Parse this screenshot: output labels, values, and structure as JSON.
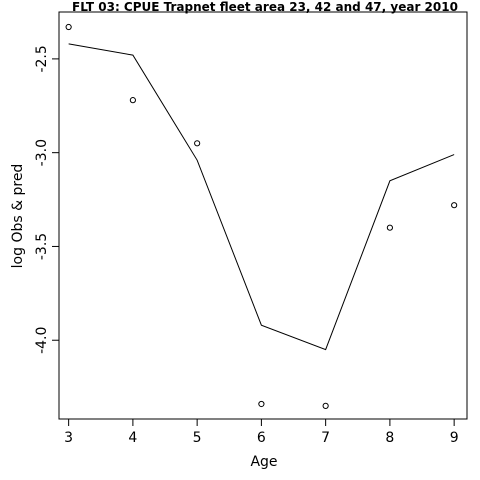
{
  "chart_data": {
    "type": "line",
    "title": "FLT 03: CPUE Trapnet fleet area 23, 42 and 47, year 2010",
    "xlabel": "Age",
    "ylabel": "log Obs & pred",
    "x": [
      3,
      4,
      5,
      6,
      7,
      8,
      9
    ],
    "series": [
      {
        "kind": "line",
        "values": [
          -2.42,
          -2.48,
          -3.04,
          -3.92,
          -4.05,
          -3.15,
          -3.01
        ]
      },
      {
        "kind": "points",
        "values": [
          -2.33,
          -2.72,
          -2.95,
          -4.34,
          -4.35,
          -3.4,
          -3.28
        ]
      }
    ],
    "xlim": [
      2.85,
      9.2
    ],
    "ylim": [
      -4.42,
      -2.25
    ],
    "xticks": [
      3,
      4,
      5,
      6,
      7,
      8,
      9
    ],
    "yticks": [
      -2.5,
      -3.0,
      -3.5,
      -4.0
    ],
    "ytick_labels": [
      "-2.5",
      "-3.0",
      "-3.5",
      "-4.0"
    ],
    "grid": false,
    "legend": "none"
  }
}
